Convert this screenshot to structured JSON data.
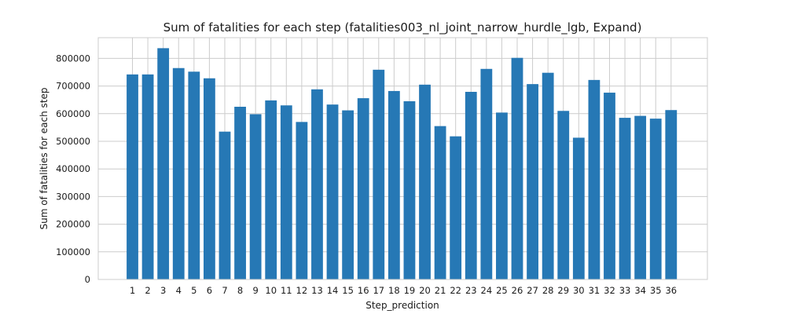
{
  "chart_data": {
    "type": "bar",
    "title": "Sum of fatalities for each step (fatalities003_nl_joint_narrow_hurdle_lgb, Expand)",
    "xlabel": "Step_prediction",
    "ylabel": "Sum of fatalities for each step",
    "categories": [
      "1",
      "2",
      "3",
      "4",
      "5",
      "6",
      "7",
      "8",
      "9",
      "10",
      "11",
      "12",
      "13",
      "14",
      "15",
      "16",
      "17",
      "18",
      "19",
      "20",
      "21",
      "22",
      "23",
      "24",
      "25",
      "26",
      "27",
      "28",
      "29",
      "30",
      "31",
      "32",
      "33",
      "34",
      "35",
      "36"
    ],
    "values": [
      742000,
      742000,
      837000,
      765000,
      752000,
      728000,
      535000,
      625000,
      598000,
      648000,
      630000,
      570000,
      688000,
      633000,
      612000,
      656000,
      759000,
      682000,
      645000,
      705000,
      555000,
      518000,
      679000,
      762000,
      604000,
      802000,
      707000,
      748000,
      610000,
      513000,
      722000,
      676000,
      585000,
      592000,
      582000,
      613000
    ],
    "ylim": [
      0,
      875000
    ],
    "yticks": [
      "0",
      "100000",
      "200000",
      "300000",
      "400000",
      "500000",
      "600000",
      "700000",
      "800000"
    ],
    "grid": true,
    "bar_color": "#2678b5",
    "grid_color": "#cccccc"
  }
}
